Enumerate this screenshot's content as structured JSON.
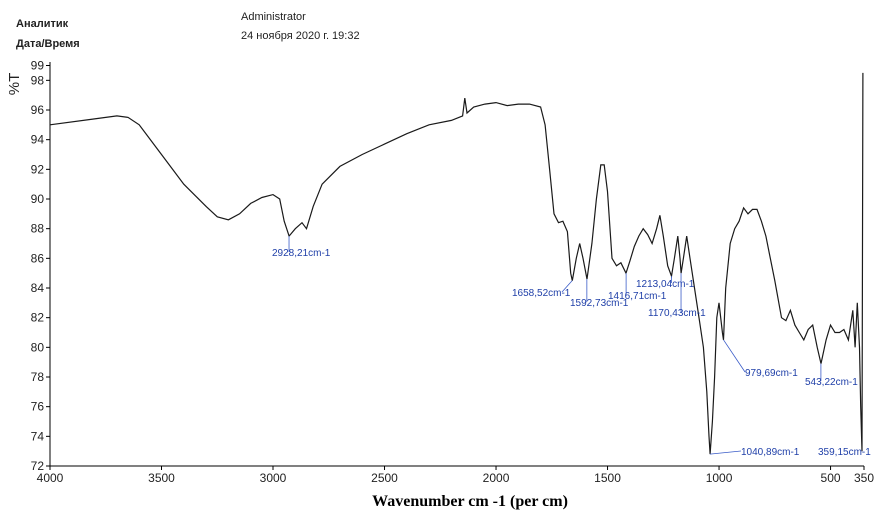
{
  "header": {
    "analyst_label": "Аналитик",
    "analyst": "Administrator",
    "datetime_label": "Дата/Время",
    "datetime": "24 ноября 2020 г. 19:32"
  },
  "chart_data": {
    "type": "line",
    "ylabel": "%T",
    "xlabel": "Wavenumber cm -1 (per cm)",
    "xlim": [
      4000,
      350
    ],
    "ylim": [
      72,
      99
    ],
    "xticks": [
      4000,
      3500,
      3000,
      2500,
      2000,
      1500,
      1000,
      500,
      350
    ],
    "yticks": [
      72,
      74,
      76,
      78,
      80,
      82,
      84,
      86,
      88,
      90,
      92,
      94,
      96,
      98,
      99
    ],
    "series": [
      {
        "name": "%T",
        "color": "#1a1a1a",
        "x": [
          4000,
          3800,
          3700,
          3650,
          3600,
          3500,
          3400,
          3300,
          3250,
          3200,
          3150,
          3100,
          3050,
          3000,
          2970,
          2950,
          2928,
          2900,
          2870,
          2850,
          2820,
          2780,
          2700,
          2600,
          2500,
          2400,
          2300,
          2200,
          2150,
          2140,
          2130,
          2100,
          2050,
          2000,
          1950,
          1900,
          1850,
          1800,
          1780,
          1760,
          1740,
          1720,
          1700,
          1680,
          1665,
          1658,
          1640,
          1625,
          1610,
          1592,
          1570,
          1550,
          1530,
          1515,
          1500,
          1480,
          1460,
          1440,
          1417,
          1400,
          1380,
          1360,
          1340,
          1320,
          1300,
          1280,
          1265,
          1250,
          1230,
          1213,
          1200,
          1185,
          1175,
          1170,
          1160,
          1145,
          1130,
          1110,
          1090,
          1070,
          1055,
          1045,
          1040,
          1030,
          1020,
          1010,
          1000,
          985,
          980,
          970,
          950,
          930,
          910,
          890,
          870,
          850,
          830,
          810,
          790,
          770,
          750,
          720,
          700,
          680,
          660,
          640,
          620,
          600,
          580,
          560,
          543,
          520,
          500,
          480,
          460,
          440,
          420,
          400,
          390,
          380,
          370,
          365,
          359,
          355
        ],
        "values": [
          95.0,
          95.4,
          95.6,
          95.5,
          95.0,
          93.0,
          91.0,
          89.5,
          88.8,
          88.6,
          89.0,
          89.7,
          90.1,
          90.3,
          90.0,
          88.5,
          87.5,
          88.0,
          88.4,
          88.0,
          89.5,
          91.0,
          92.2,
          93.0,
          93.7,
          94.4,
          95.0,
          95.3,
          95.6,
          96.8,
          95.8,
          96.2,
          96.4,
          96.5,
          96.3,
          96.4,
          96.4,
          96.2,
          95.0,
          92.0,
          89.0,
          88.4,
          88.5,
          87.8,
          85.0,
          84.5,
          86.0,
          87.0,
          86.0,
          84.6,
          87.0,
          90.0,
          92.3,
          92.3,
          90.5,
          86.0,
          85.5,
          85.7,
          85.0,
          85.8,
          86.8,
          87.5,
          88.0,
          87.6,
          87.0,
          88.0,
          88.9,
          87.5,
          85.5,
          84.8,
          86.0,
          87.5,
          86.0,
          85.0,
          86.0,
          87.5,
          86.0,
          84.0,
          82.0,
          80.0,
          77.0,
          74.0,
          72.8,
          75.0,
          78.0,
          82.0,
          83.0,
          81.0,
          80.5,
          84.0,
          87.0,
          88.0,
          88.5,
          89.4,
          89.0,
          89.3,
          89.3,
          88.5,
          87.5,
          86.0,
          84.5,
          82.0,
          81.8,
          82.5,
          81.5,
          81.0,
          80.5,
          81.2,
          81.5,
          80.0,
          78.9,
          80.5,
          81.5,
          81.0,
          81.0,
          81.2,
          80.5,
          82.5,
          80.0,
          83.0,
          80.0,
          76.0,
          73.0,
          98.5
        ]
      }
    ],
    "annotations": [
      {
        "x": 2928.21,
        "y": 87.5,
        "label": "2928,21cm-1"
      },
      {
        "x": 1658.52,
        "y": 84.5,
        "label": "1658,52cm-1"
      },
      {
        "x": 1592.73,
        "y": 84.6,
        "label": "1592,73cm-1"
      },
      {
        "x": 1416.71,
        "y": 85.0,
        "label": "1416,71cm-1"
      },
      {
        "x": 1213.04,
        "y": 84.8,
        "label": "1213,04cm-1"
      },
      {
        "x": 1170.43,
        "y": 85.0,
        "label": "1170,43cm-1"
      },
      {
        "x": 979.69,
        "y": 80.5,
        "label": "979,69cm-1"
      },
      {
        "x": 543.22,
        "y": 78.9,
        "label": "543,22cm-1"
      },
      {
        "x": 1040.89,
        "y": 72.8,
        "label": "1040,89cm-1"
      },
      {
        "x": 359.15,
        "y": 73.0,
        "label": "359,15cm-1"
      }
    ]
  }
}
